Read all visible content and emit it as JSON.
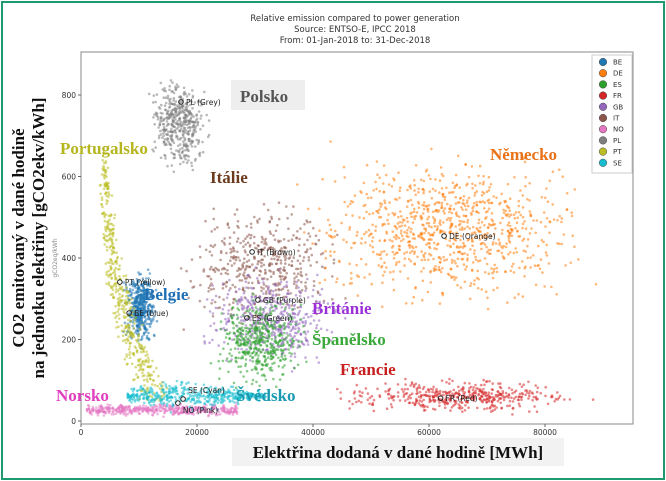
{
  "chart_data": {
    "type": "scatter",
    "title": [
      "Relative emission compared to power generation",
      "Source: ENTSO-E, IPCC 2018",
      "From: 01-Jan-2018 to: 31-Dec-2018"
    ],
    "ylabel_original": "gCO2eq/kWh",
    "xlabel": "Elektřina dodaná v dané hodině [MWh]",
    "ylabel": [
      "CO2 emitovaný v dané hodině",
      "na jednotku elektřiny [gCO2ekv/kWh]"
    ],
    "xlim": [
      0,
      95000
    ],
    "ylim": [
      0,
      900
    ],
    "xticks": [
      0,
      20000,
      40000,
      60000,
      80000
    ],
    "yticks": [
      0,
      200,
      400,
      600,
      800
    ],
    "grid": false,
    "legend_position": "top-right",
    "series": [
      {
        "name": "BE",
        "color": "#1f77b4",
        "marker": {
          "x": 8300,
          "y": 265,
          "label": "BE (blue)"
        },
        "x_range": [
          7000,
          13500
        ],
        "y_range": [
          170,
          390
        ],
        "country_label": "Belgie",
        "label_color": "#1f6fb4"
      },
      {
        "name": "DE",
        "color": "#ff7f0e",
        "marker": {
          "x": 62600,
          "y": 454,
          "label": "DE (Orange)"
        },
        "x_range": [
          35000,
          91000
        ],
        "y_range": [
          240,
          700
        ],
        "country_label": "Německo",
        "label_color": "#e8731a"
      },
      {
        "name": "ES",
        "color": "#2ca02c",
        "marker": {
          "x": 28600,
          "y": 253,
          "label": "ES (Green)"
        },
        "x_range": [
          21000,
          41000
        ],
        "y_range": [
          60,
          330
        ],
        "country_label": "Španělsko",
        "label_color": "#3aa83a"
      },
      {
        "name": "FR",
        "color": "#d62728",
        "marker": {
          "x": 62000,
          "y": 56,
          "label": "FR (Red)"
        },
        "x_range": [
          40000,
          90000
        ],
        "y_range": [
          10,
          110
        ],
        "country_label": "Francie",
        "label_color": "#c82020"
      },
      {
        "name": "GB",
        "color": "#9467bd",
        "marker": {
          "x": 30500,
          "y": 297,
          "label": "GB (Purple)"
        },
        "x_range": [
          18000,
          47000
        ],
        "y_range": [
          110,
          390
        ],
        "country_label": "Británie",
        "label_color": "#9b30d9"
      },
      {
        "name": "IT",
        "color": "#8c564b",
        "marker": {
          "x": 29500,
          "y": 415,
          "label": "IT (Brown)"
        },
        "x_range": [
          15000,
          47000
        ],
        "y_range": [
          200,
          560
        ],
        "country_label": "Itálie",
        "label_color": "#6b3a1f"
      },
      {
        "name": "NO",
        "color": "#e377c2",
        "marker": {
          "x": 16700,
          "y": 44,
          "label": "NO (Pink)"
        },
        "x_range": [
          1000,
          27000
        ],
        "y_range": [
          5,
          50
        ],
        "country_label": "Norsko",
        "label_color": "#e040c0"
      },
      {
        "name": "PL",
        "color": "#7f7f7f",
        "marker": {
          "x": 17240,
          "y": 783,
          "label": "PL (Grey)"
        },
        "x_range": [
          11000,
          23000
        ],
        "y_range": [
          600,
          860
        ],
        "country_label": "Polsko",
        "label_color": "#555555"
      },
      {
        "name": "PT",
        "color": "#bcbd22",
        "marker": {
          "x": 6700,
          "y": 341,
          "label": "PT (Yellow)"
        },
        "x_range": [
          3000,
          15000
        ],
        "y_range": [
          50,
          650
        ],
        "country_label": "Portugalsko",
        "label_color": "#b5b51e"
      },
      {
        "name": "SE",
        "color": "#17becf",
        "marker": {
          "x": 17600,
          "y": 54,
          "label": "SE (Cyan)"
        },
        "x_range": [
          8000,
          32000
        ],
        "y_range": [
          15,
          110
        ],
        "country_label": "Švédsko",
        "label_color": "#1a9ab0"
      }
    ]
  }
}
